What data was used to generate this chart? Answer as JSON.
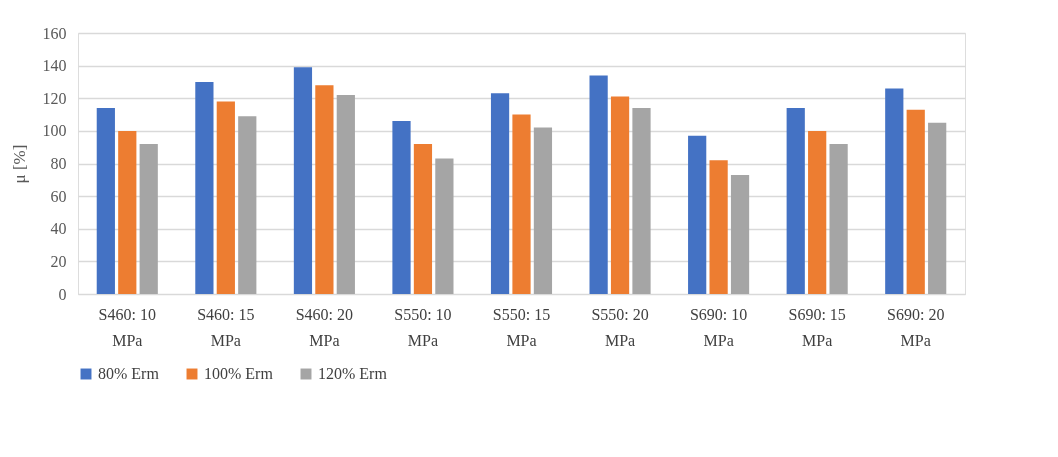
{
  "chart_data": {
    "type": "bar",
    "ylabel": "μ [%]",
    "categories": [
      "S460: 10 MPa",
      "S460: 15 MPa",
      "S460: 20 MPa",
      "S550: 10 MPa",
      "S550: 15 MPa",
      "S550: 20 MPa",
      "S690: 10 MPa",
      "S690: 15 MPa",
      "S690: 20 MPa"
    ],
    "series": [
      {
        "name": "80% Erm",
        "color": "#4472c4",
        "values": [
          114,
          130,
          139,
          106,
          123,
          134,
          97,
          114,
          126
        ]
      },
      {
        "name": "100% Erm",
        "color": "#ed7d31",
        "values": [
          100,
          118,
          128,
          92,
          110,
          121,
          82,
          100,
          113
        ]
      },
      {
        "name": "120% Erm",
        "color": "#a5a5a5",
        "values": [
          92,
          109,
          122,
          83,
          102,
          114,
          73,
          92,
          105
        ]
      }
    ],
    "ylim": [
      0,
      160
    ],
    "yticks": [
      0,
      20,
      40,
      60,
      80,
      100,
      120,
      140,
      160
    ],
    "grid": "y",
    "legend": "bottom"
  }
}
